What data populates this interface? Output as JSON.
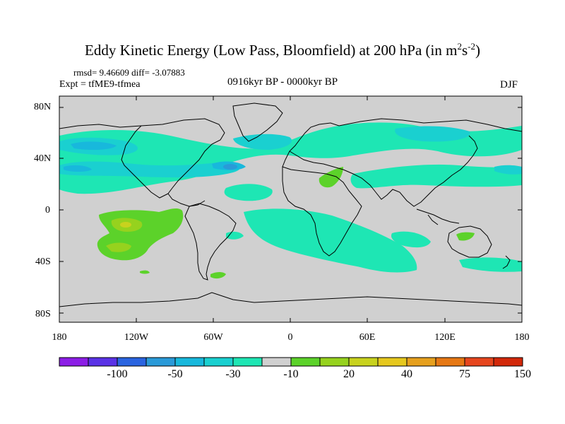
{
  "title": {
    "main": "Eddy Kinetic Energy (Low Pass, Bloomfield) at 200 hPa (in m",
    "sup1": "2",
    "s": "s",
    "sup2": "-2",
    "close": ")"
  },
  "stats": "rmsd= 9.46609 diff= -3.07883",
  "experiment": "Expt = tfME9-tfmea",
  "period": "0916kyr BP - 0000kyr BP",
  "season": "DJF",
  "latitude_labels": [
    "80N",
    "40N",
    "0",
    "40S",
    "80S"
  ],
  "longitude_labels": [
    "180",
    "120W",
    "60W",
    "0",
    "60E",
    "120E",
    "180"
  ],
  "colorbar": {
    "labels": [
      "-100",
      "-50",
      "-30",
      "-10",
      "20",
      "40",
      "75",
      "150"
    ],
    "colors": [
      "#8c1ee6",
      "#5a32e6",
      "#2a64e0",
      "#2a9ad8",
      "#18b8dc",
      "#1ad0d0",
      "#1ee6b4",
      "#d0d0d0",
      "#5cd22a",
      "#96d21e",
      "#c8d21e",
      "#e6c81e",
      "#e6a01e",
      "#e67814",
      "#e6461e",
      "#d2280a"
    ]
  },
  "colors": {
    "background_field": "#d0d0d0",
    "cyan": "#1ee6b4",
    "teal": "#1ad0d0",
    "light_blue": "#18b8dc",
    "blue": "#2a9ad8",
    "green": "#5cd22a",
    "yellow_green": "#96d21e",
    "olive": "#c8d21e"
  }
}
